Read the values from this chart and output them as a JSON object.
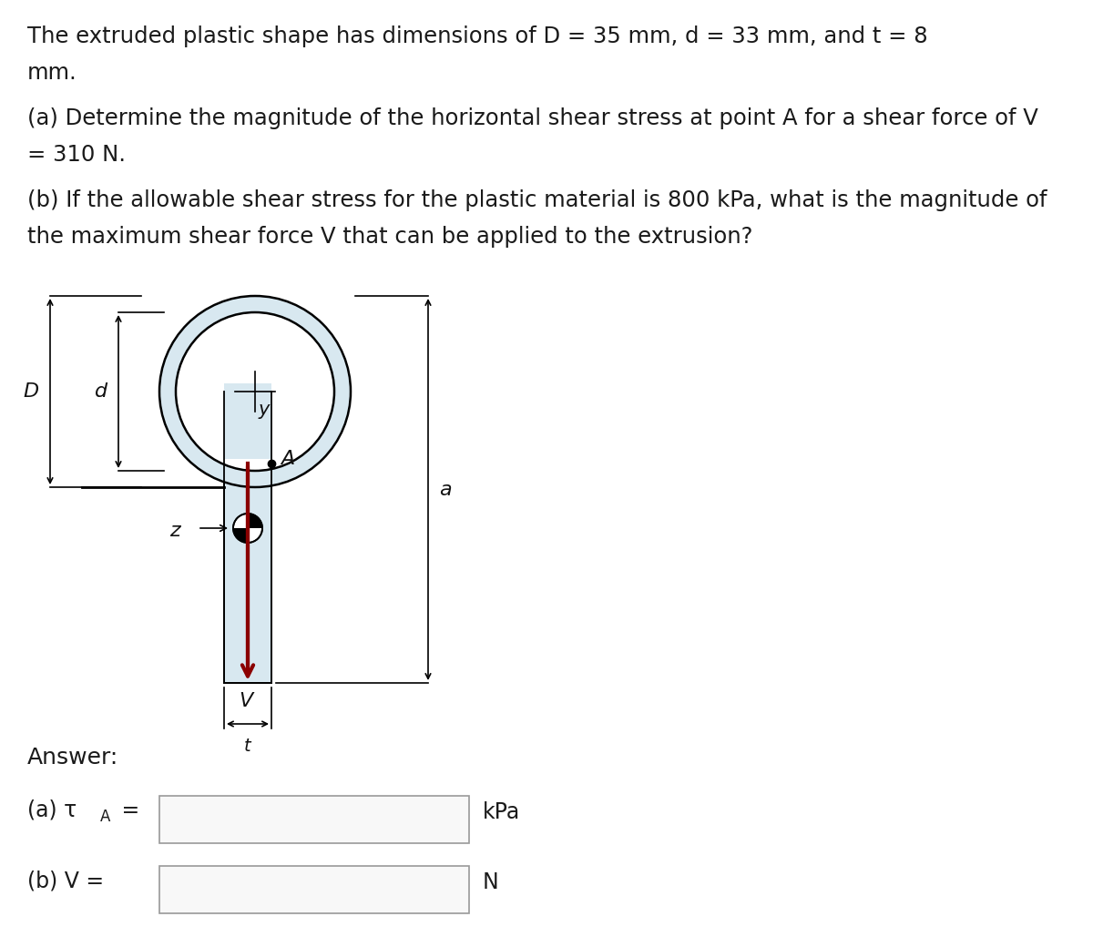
{
  "line1": "The extruded plastic shape has dimensions of D = 35 mm, d = 33 mm, and t = 8",
  "line1b": "mm.",
  "line2": "(a) Determine the magnitude of the horizontal shear stress at point A for a shear force of V",
  "line2b": "= 310 N.",
  "line3": "(b) If the allowable shear stress for the plastic material is 800 kPa, what is the magnitude of",
  "line3b": "the maximum shear force V that can be applied to the extrusion?",
  "answer_label": "Answer:",
  "part_a_label_main": "(a) τ",
  "part_a_label_sub": "A",
  "part_a_label_eq": " =",
  "part_a_unit": "kPa",
  "part_b_label": "(b) V =",
  "part_b_unit": "N",
  "bg_color": "#ffffff",
  "diagram_bg": "#d8e8f0",
  "diagram_outline": "#000000",
  "arrow_color": "#8b0000",
  "text_color": "#1a1a1a"
}
